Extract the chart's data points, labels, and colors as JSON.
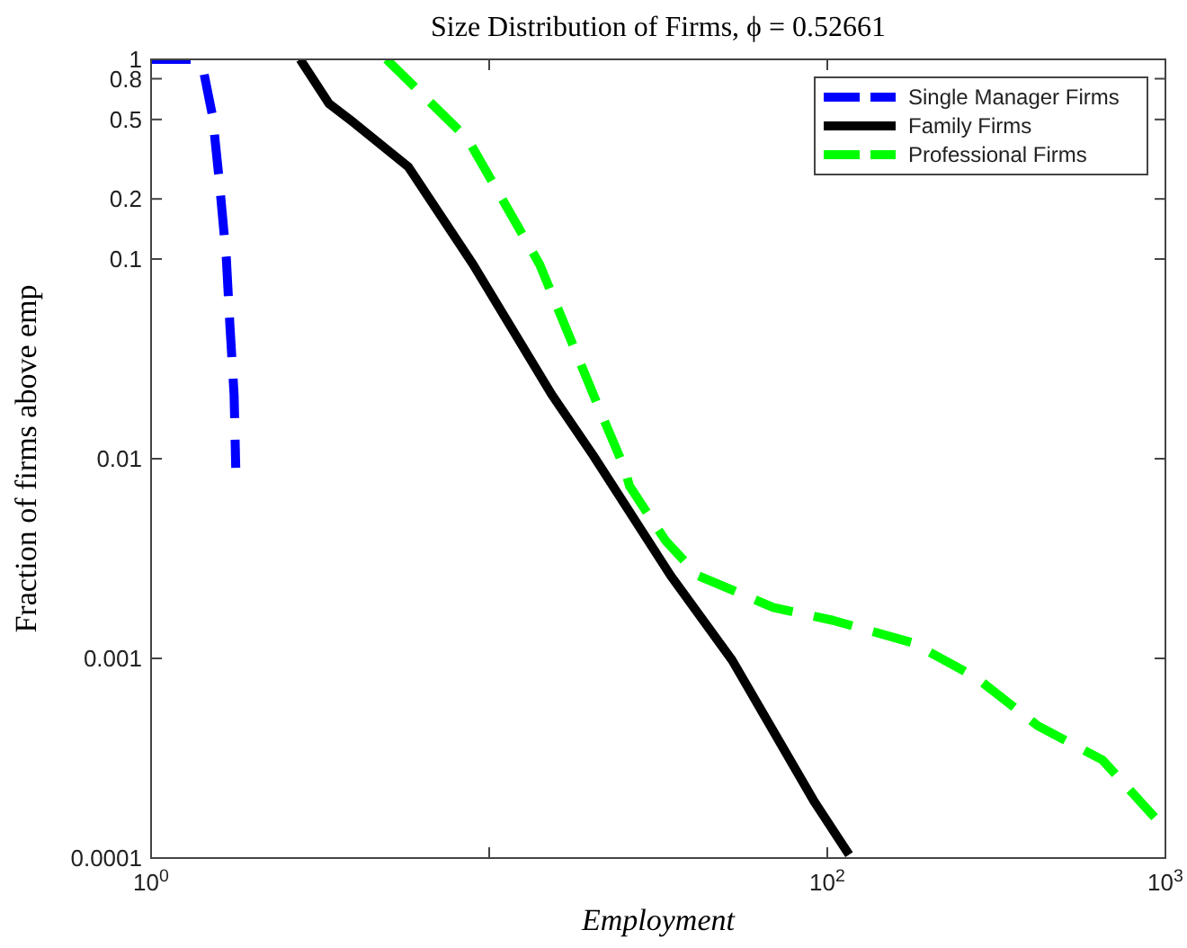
{
  "chart_data": {
    "type": "line",
    "title": "Size Distribution of Firms, ϕ = 0.52661",
    "xlabel": "Employment",
    "ylabel": "Fraction of firms above emp",
    "log": "xy",
    "grid": false,
    "legend": "top right",
    "marker": "none",
    "xlim": [
      1,
      1000
    ],
    "ylim": [
      0.0001,
      1
    ],
    "xticks": [
      {
        "value": 1,
        "label": "10$^{0}$"
      },
      {
        "value": 10,
        "label": null
      },
      {
        "value": 100,
        "label": "10$^{2}$"
      },
      {
        "value": 1000,
        "label": "10$^{3}$"
      }
    ],
    "yticks": [
      0.0001,
      0.001,
      0.01,
      0.1,
      0.2,
      0.5,
      0.8,
      1
    ],
    "series": [
      {
        "name": "Single Manager Firms",
        "color": "#0000ff",
        "line_style": "dashed",
        "x": [
          1,
          1.33,
          1.43,
          1.52,
          1.59,
          1.67,
          1.71,
          1.76,
          1.78
        ],
        "values": [
          1,
          1,
          0.87,
          0.52,
          0.25,
          0.1,
          0.047,
          0.021,
          0.009
        ]
      },
      {
        "name": "Family Firms",
        "color": "#000000",
        "line_style": "solid",
        "x": [
          2.76,
          3.36,
          3.99,
          5.76,
          8.96,
          15.3,
          20.3,
          34.4,
          52.3,
          91.8,
          116
        ],
        "values": [
          1,
          0.6,
          0.48,
          0.29,
          0.094,
          0.021,
          0.0104,
          0.0026,
          0.00098,
          0.00019,
          0.000104
        ]
      },
      {
        "name": "Professional Firms",
        "color": "#00ff00",
        "line_style": "dashed",
        "x": [
          4.97,
          8.63,
          14.1,
          21.1,
          25.1,
          26,
          33.2,
          41.4,
          69.2,
          104,
          178,
          276,
          419,
          651,
          929
        ],
        "values": [
          1,
          0.4,
          0.094,
          0.018,
          0.009,
          0.0073,
          0.0039,
          0.0026,
          0.0018,
          0.00155,
          0.0012,
          0.0008,
          0.00046,
          0.00031,
          0.00016
        ]
      }
    ]
  }
}
